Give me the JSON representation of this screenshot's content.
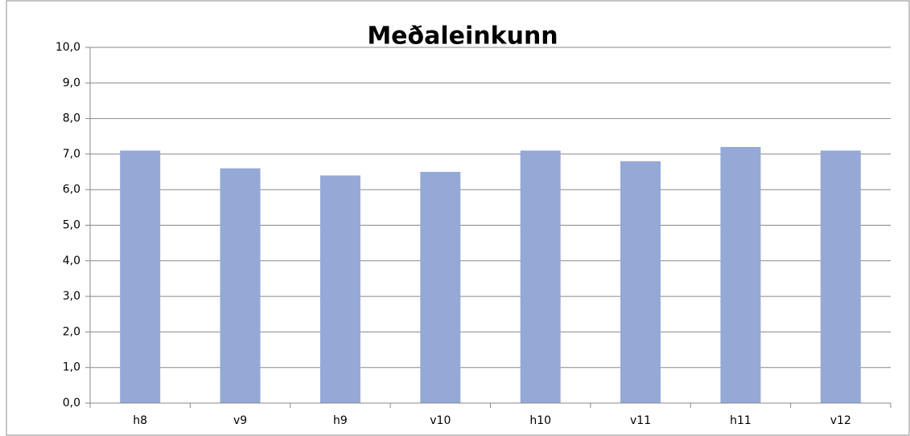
{
  "chart_data": {
    "type": "bar",
    "title": "Meðaleinkunn",
    "categories": [
      "h8",
      "v9",
      "h9",
      "v10",
      "h10",
      "v11",
      "h11",
      "v12"
    ],
    "values": [
      7.1,
      6.6,
      6.4,
      6.5,
      7.1,
      6.8,
      7.2,
      7.1
    ],
    "color": "#95a9d6",
    "ylim": [
      0,
      10
    ],
    "yticks": [
      {
        "value": 0,
        "label": "0,0"
      },
      {
        "value": 1,
        "label": "1,0"
      },
      {
        "value": 2,
        "label": "2,0"
      },
      {
        "value": 3,
        "label": "3,0"
      },
      {
        "value": 4,
        "label": "4,0"
      },
      {
        "value": 5,
        "label": "5,0"
      },
      {
        "value": 6,
        "label": "6,0"
      },
      {
        "value": 7,
        "label": "7,0"
      },
      {
        "value": 8,
        "label": "8,0"
      },
      {
        "value": 9,
        "label": "9,0"
      },
      {
        "value": 10,
        "label": "10,0"
      }
    ],
    "grid": true
  }
}
